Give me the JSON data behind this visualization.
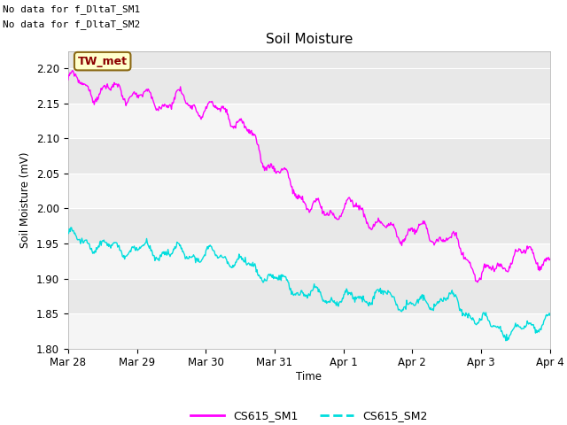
{
  "title": "Soil Moisture",
  "ylabel": "Soil Moisture (mV)",
  "xlabel": "Time",
  "annotations": [
    "No data for f_DltaT_SM1",
    "No data for f_DltaT_SM2"
  ],
  "legend_label": "TW_met",
  "legend_bg": "#ffffcc",
  "legend_border": "#8b0000",
  "line1_label": "CS615_SM1",
  "line2_label": "CS615_SM2",
  "line1_color": "#ff00ff",
  "line2_color": "#00dddd",
  "ylim": [
    1.8,
    2.225
  ],
  "yticks": [
    1.8,
    1.85,
    1.9,
    1.95,
    2.0,
    2.05,
    2.1,
    2.15,
    2.2
  ],
  "xtick_labels": [
    "Mar 28",
    "Mar 29",
    "Mar 30",
    "Mar 31",
    "Apr 1",
    "Apr 2",
    "Apr 3",
    "Apr 4"
  ],
  "bg_color": "#e8e8e8",
  "fig_bg": "#ffffff",
  "grid_color": "#ffffff",
  "band_color1": "#e8e8e8",
  "band_color2": "#f5f5f5"
}
